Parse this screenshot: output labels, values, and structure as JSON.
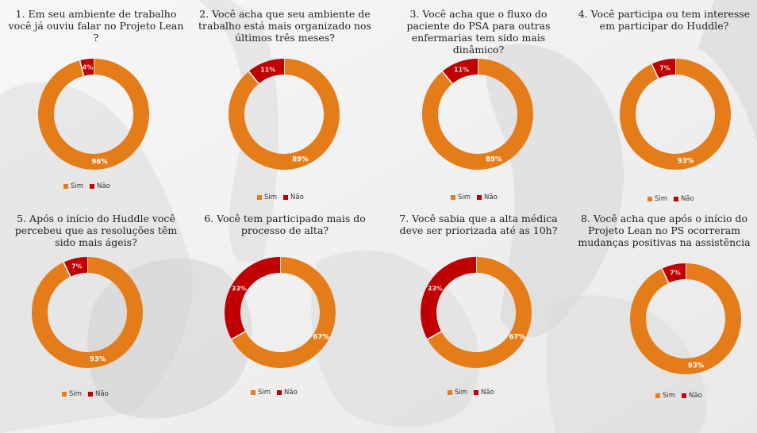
{
  "colors": {
    "sim": "#E57C1A",
    "nao": "#C00000"
  },
  "chart_data": [
    {
      "type": "pie",
      "title": "1. Em seu ambiente de trabalho você já ouviu falar no Projeto Lean ?",
      "categories": [
        "Sim",
        "Não"
      ],
      "values": [
        96,
        4
      ],
      "labels": [
        "96%",
        "4%"
      ],
      "legend": [
        "Sim",
        "Não"
      ]
    },
    {
      "type": "pie",
      "title": "2. Você acha que seu ambiente de trabalho está mais organizado nos últimos três meses?",
      "categories": [
        "Sim",
        "Não"
      ],
      "values": [
        89,
        11
      ],
      "labels": [
        "89%",
        "11%"
      ],
      "legend": [
        "Sim",
        "Não"
      ]
    },
    {
      "type": "pie",
      "title": "3. Você acha que o fluxo do paciente do PSA para outras enfermarias tem sido mais dinâmico?",
      "categories": [
        "Sim",
        "Não"
      ],
      "values": [
        89,
        11
      ],
      "labels": [
        "89%",
        "11%"
      ],
      "legend": [
        "Sim",
        "Não"
      ]
    },
    {
      "type": "pie",
      "title": "4. Você participa ou tem interesse em participar do Huddle?",
      "categories": [
        "Sim",
        "Não"
      ],
      "values": [
        93,
        7
      ],
      "labels": [
        "93%",
        "7%"
      ],
      "legend": [
        "Sim",
        "Não"
      ]
    },
    {
      "type": "pie",
      "title": "5. Após o início do Huddle você percebeu que as resoluções têm sido mais ágeis?",
      "categories": [
        "Sim",
        "Não"
      ],
      "values": [
        93,
        7
      ],
      "labels": [
        "93%",
        "7%"
      ],
      "legend": [
        "Sim",
        "Não"
      ]
    },
    {
      "type": "pie",
      "title": "6. Você tem participado mais do processo de alta?",
      "categories": [
        "Sim",
        "Não"
      ],
      "values": [
        67,
        33
      ],
      "labels": [
        "67%",
        "33%"
      ],
      "legend": [
        "Sim",
        "Não"
      ]
    },
    {
      "type": "pie",
      "title": "7. Você sabia que a alta médica deve ser priorizada até as 10h?",
      "categories": [
        "Sim",
        "Não"
      ],
      "values": [
        67,
        33
      ],
      "labels": [
        "67%",
        "33%"
      ],
      "legend": [
        "Sim",
        "Não"
      ]
    },
    {
      "type": "pie",
      "title": "8. Você acha que após o início do Projeto Lean no PS ocorreram mudanças positivas na assistência",
      "categories": [
        "Sim",
        "Não"
      ],
      "values": [
        93,
        7
      ],
      "labels": [
        "93%",
        "7%"
      ],
      "legend": [
        "Sim",
        "Não"
      ]
    }
  ]
}
